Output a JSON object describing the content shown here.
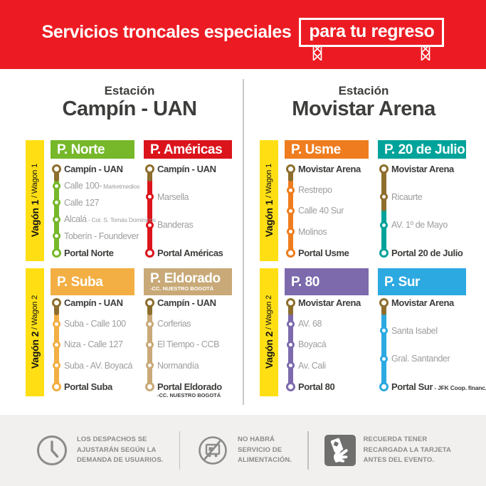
{
  "banner": {
    "title": "Servicios troncales especiales",
    "highlight": "para tu regreso"
  },
  "colors": {
    "banner_red": "#EC1B23",
    "wagon_yellow": "#FFDF14",
    "shared_segment_brown": "#8D6E2D",
    "dark_text": "#3D3D3B",
    "gray_stop_text": "#9D9D9C",
    "footer_bg": "#F1F0EE",
    "footer_fg": "#8B8B8A",
    "divider_gray": "#C8C8C7"
  },
  "stations": [
    {
      "label": "Estación",
      "name": "Campín - UAN",
      "wagons": [
        {
          "label_bold": "Vagón 1",
          "label_light": " / Wagon 1",
          "routes": [
            {
              "title": "P. Norte",
              "color": "#76B82A",
              "shared_until": 0,
              "stops": [
                {
                  "name": "Campín - UAN",
                  "bold": true,
                  "origin": true
                },
                {
                  "name": "Calle 100-",
                  "small": " Marketmedios"
                },
                {
                  "name": "Calle 127"
                },
                {
                  "name": "Alcalá",
                  "small": " - Col. S. Tomás Dominicos"
                },
                {
                  "name": "Toberín - Foundever"
                },
                {
                  "name": "Portal Norte",
                  "bold": true
                }
              ]
            },
            {
              "title": "P. Américas",
              "color": "#DB141C",
              "shared_until": 0,
              "stops": [
                {
                  "name": "Campín - UAN",
                  "bold": true,
                  "origin": true
                },
                {
                  "name": "Marsella"
                },
                {
                  "name": "Banderas"
                },
                {
                  "name": "Portal Américas",
                  "bold": true
                }
              ]
            }
          ]
        },
        {
          "label_bold": "Vagón 2",
          "label_light": " / Wagon 2",
          "routes": [
            {
              "title": "P. Suba",
              "color": "#F3AF43",
              "shared_until": 0,
              "stops": [
                {
                  "name": "Campín - UAN",
                  "bold": true,
                  "origin": true
                },
                {
                  "name": "Suba - Calle 100"
                },
                {
                  "name": "Niza - Calle 127"
                },
                {
                  "name": "Suba - AV. Boyacá"
                },
                {
                  "name": "Portal Suba",
                  "bold": true
                }
              ]
            },
            {
              "title": "P. Eldorado",
              "subtitle": "-CC. NUESTRO BOGOTÁ",
              "color": "#C8A977",
              "shared_until": 0,
              "stops": [
                {
                  "name": "Campín - UAN",
                  "bold": true,
                  "origin": true
                },
                {
                  "name": "Corferias"
                },
                {
                  "name": "El Tiempo - CCB"
                },
                {
                  "name": "Normandía"
                },
                {
                  "name": "Portal Eldorado",
                  "bold": true,
                  "sub": "-CC. NUESTRO BOGOTÁ"
                }
              ]
            }
          ]
        }
      ]
    },
    {
      "label": "Estación",
      "name": "Movistar Arena",
      "wagons": [
        {
          "label_bold": "Vagón 1",
          "label_light": " / Wagon 1",
          "routes": [
            {
              "title": "P. Usme",
              "color": "#EF7D1F",
              "shared_until": 0,
              "stops": [
                {
                  "name": "Movistar Arena",
                  "bold": true,
                  "origin": true
                },
                {
                  "name": "Restrepo"
                },
                {
                  "name": "Calle 40 Sur"
                },
                {
                  "name": "Molinos"
                },
                {
                  "name": "Portal Usme",
                  "bold": true
                }
              ]
            },
            {
              "title": "P. 20 de Julio",
              "color": "#00A39A",
              "shared_until": 1,
              "stops": [
                {
                  "name": "Movistar Arena",
                  "bold": true,
                  "origin": true
                },
                {
                  "name": "Ricaurte",
                  "shared": true
                },
                {
                  "name": "AV. 1º de Mayo"
                },
                {
                  "name": "Portal 20 de Julio",
                  "bold": true
                }
              ]
            }
          ]
        },
        {
          "label_bold": "Vagón 2",
          "label_light": " / Wagon 2",
          "routes": [
            {
              "title": "P. 80",
              "color": "#7C6AAD",
              "shared_until": 0,
              "stops": [
                {
                  "name": "Movistar Arena",
                  "bold": true,
                  "origin": true
                },
                {
                  "name": "AV. 68"
                },
                {
                  "name": "Boyacá"
                },
                {
                  "name": "Av. Cali"
                },
                {
                  "name": "Portal 80",
                  "bold": true
                }
              ]
            },
            {
              "title": "P. Sur",
              "color": "#2CA9E1",
              "shared_until": 0,
              "stops": [
                {
                  "name": "Movistar Arena",
                  "bold": true,
                  "origin": true
                },
                {
                  "name": "Santa Isabel"
                },
                {
                  "name": "Gral. Santander"
                },
                {
                  "name": "Portal Sur",
                  "bold": true,
                  "small": " - JFK Coop. financ."
                }
              ]
            }
          ]
        }
      ]
    }
  ],
  "footer": {
    "items": [
      {
        "icon": "clock-icon",
        "lines": [
          "LOS DESPACHOS SE",
          "AJUSTARÁN SEGÚN LA",
          "DEMANDA DE USUARIOS."
        ]
      },
      {
        "icon": "no-food-service-icon",
        "lines": [
          "NO HABRÁ",
          "SERVICIO DE",
          "ALIMENTACIÓN."
        ]
      },
      {
        "icon": "card-recharge-icon",
        "lines": [
          "RECUERDA TENER",
          "RECARGADA LA TARJETA",
          "ANTES DEL EVENTO."
        ]
      }
    ]
  }
}
